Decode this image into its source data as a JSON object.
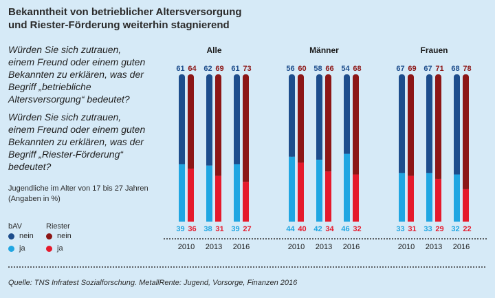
{
  "title_line1": "Bekanntheit von betrieblicher Altersversorgung",
  "title_line2": "und Riester-Förderung weiterhin stagnierend",
  "question1": "Würden Sie sich zutrauen, einem Freund oder einem guten Bekannten zu erklären, was der Begriff „betriebliche Altersversorgung“ bedeutet?",
  "question2": "Würden Sie sich zutrauen, einem Freund oder einem guten Bekannten zu erklären, was der Begriff „Riester-Förderung“ bedeutet?",
  "note": "Jugendliche im Alter von 17 bis 27 Jahren (Angaben in %)",
  "legend": {
    "bav_title": "bAV",
    "riester_title": "Riester",
    "nein": "nein",
    "ja": "ja"
  },
  "source": "Quelle: TNS Infratest Sozialforschung. MetallRente: Jugend, Vorsorge, Finanzen 2016",
  "colors": {
    "bav_nein": "#1d4d8c",
    "bav_ja": "#20a6e2",
    "riester_nein": "#8c1616",
    "riester_ja": "#e51a2c",
    "background": "#d6eaf7"
  },
  "chart_data": {
    "type": "bar",
    "stacked": true,
    "unit": "%",
    "groups": [
      {
        "name": "Alle",
        "years": [
          "2010",
          "2013",
          "2016"
        ],
        "bav_nein": [
          61,
          62,
          61
        ],
        "bav_ja": [
          39,
          38,
          39
        ],
        "riester_nein": [
          64,
          69,
          73
        ],
        "riester_ja": [
          36,
          31,
          27
        ]
      },
      {
        "name": "Männer",
        "years": [
          "2010",
          "2013",
          "2016"
        ],
        "bav_nein": [
          56,
          58,
          54
        ],
        "bav_ja": [
          44,
          42,
          46
        ],
        "riester_nein": [
          60,
          66,
          68
        ],
        "riester_ja": [
          40,
          34,
          32
        ]
      },
      {
        "name": "Frauen",
        "years": [
          "2010",
          "2013",
          "2016"
        ],
        "bav_nein": [
          67,
          67,
          68
        ],
        "bav_ja": [
          33,
          33,
          32
        ],
        "riester_nein": [
          69,
          71,
          78
        ],
        "riester_ja": [
          31,
          29,
          22
        ]
      }
    ]
  }
}
